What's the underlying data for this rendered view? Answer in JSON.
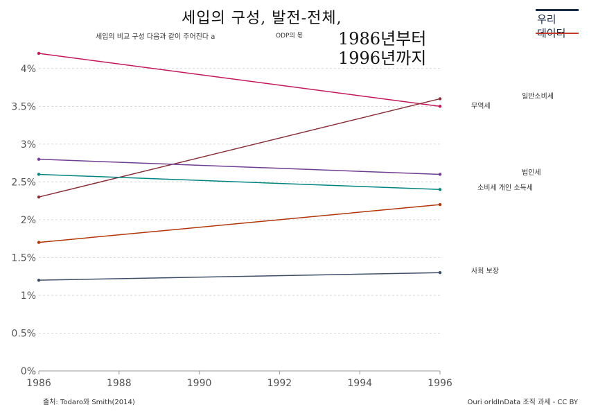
{
  "title": {
    "main": "세입의 구성, 발전-전체,",
    "line2": "1986년부터",
    "line3": "1996년까지"
  },
  "subtitle": {
    "left": "세입의 비교 구성 다음과 같이 주어진다 a",
    "right": "ODP의 몫"
  },
  "logo": {
    "line1": "우리",
    "line2": "데이터"
  },
  "source": "출처: Todaro와 Smith(2014)",
  "license": "Ouri orldInData 조직 과세 - CC BY",
  "chart_data": {
    "type": "line",
    "x": [
      1986,
      1996
    ],
    "xticks": [
      "1986",
      "1988",
      "1990",
      "1992",
      "1994",
      "1996"
    ],
    "xlim": [
      1986,
      1996
    ],
    "yticks": [
      "0%",
      "0.5%",
      "1%",
      "1.5%",
      "2%",
      "2.5%",
      "3%",
      "3.5%",
      "4%"
    ],
    "ylim": [
      0,
      4.2
    ],
    "grid": true,
    "series": [
      {
        "name": "무역세",
        "values": [
          4.2,
          3.5
        ],
        "color": "#c2185b"
      },
      {
        "name": "일반소비세",
        "values": [
          2.3,
          3.6
        ],
        "color": "#883039"
      },
      {
        "name": "법인세",
        "values": [
          2.8,
          2.6
        ],
        "color": "#6d3e91"
      },
      {
        "name": "소비세 개인 소득세",
        "values": [
          2.6,
          2.4
        ],
        "color": "#00847e"
      },
      {
        "name": "",
        "values": [
          1.7,
          2.2
        ],
        "color": "#b13507"
      },
      {
        "name": "사회 보장",
        "values": [
          1.2,
          1.3
        ],
        "color": "#3c4e66"
      }
    ]
  }
}
